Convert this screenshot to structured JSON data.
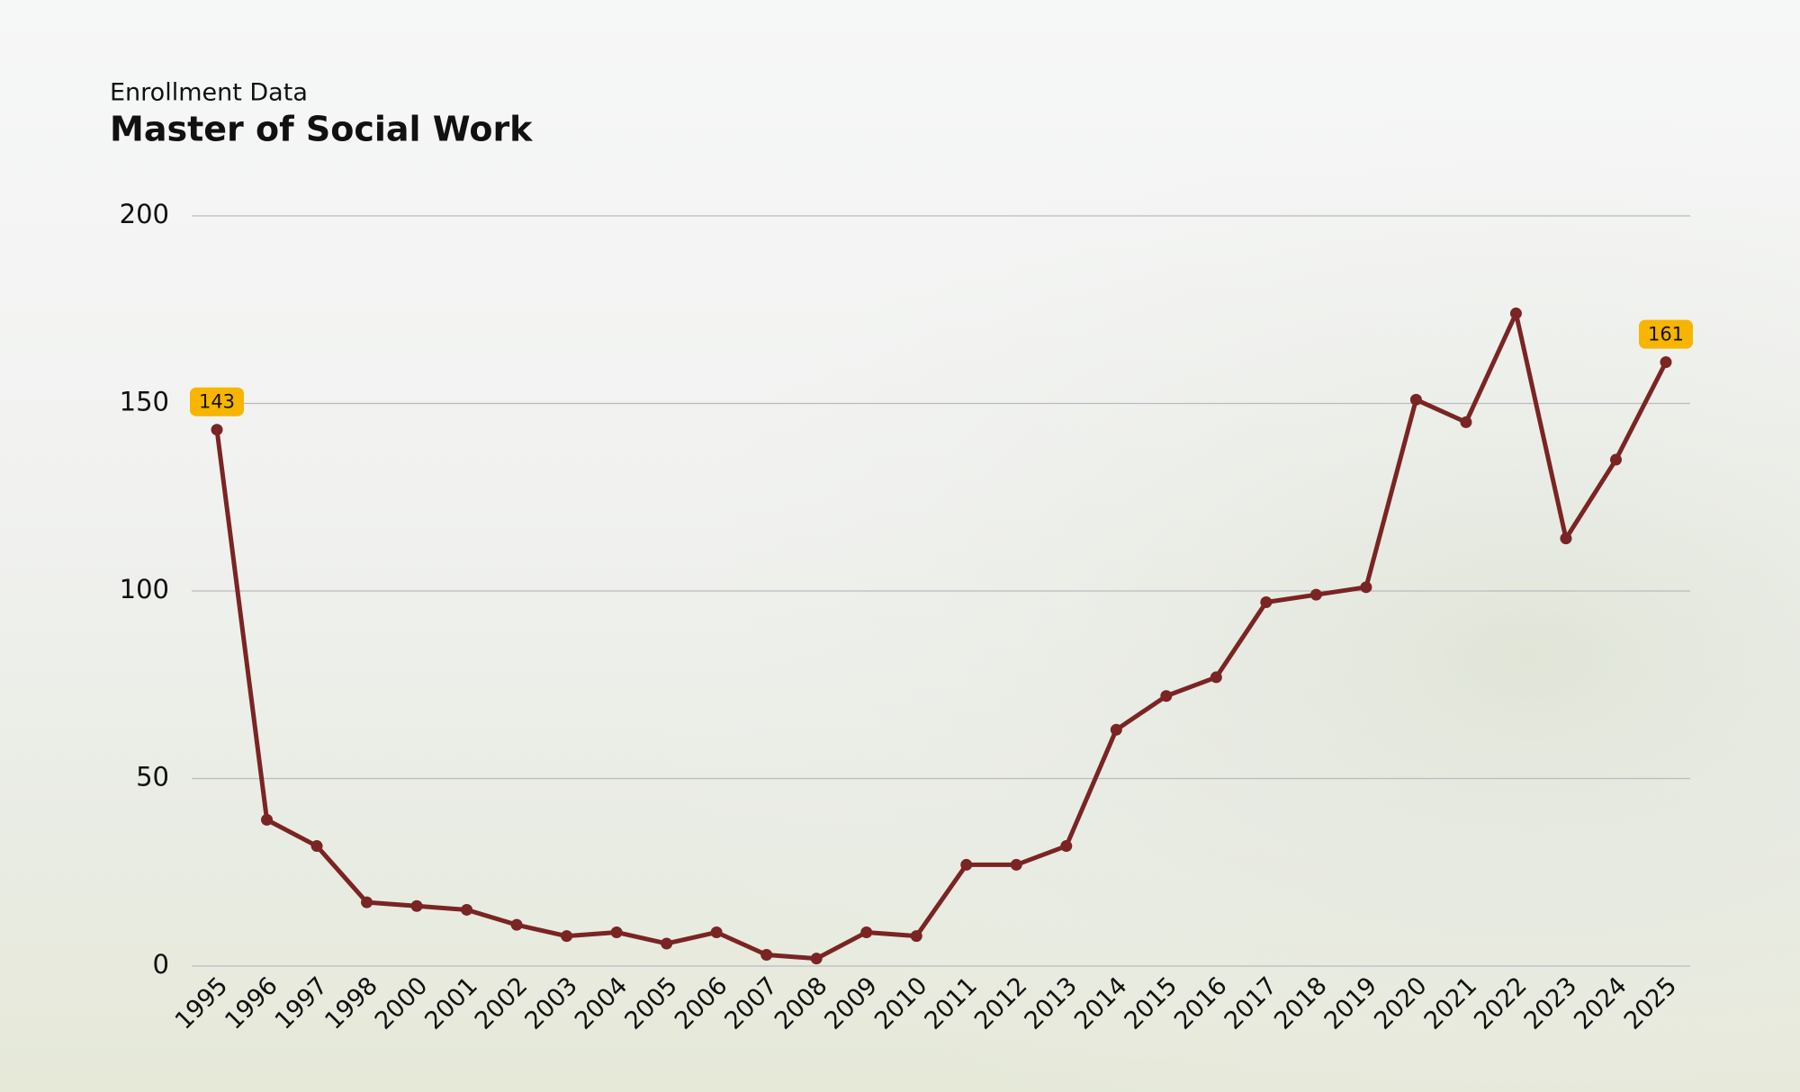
{
  "chart_data": {
    "type": "line",
    "subtitle": "Enrollment Data",
    "title": "Master of Social Work",
    "categories": [
      "1995",
      "1996",
      "1997",
      "1998",
      "2000",
      "2001",
      "2002",
      "2003",
      "2004",
      "2005",
      "2006",
      "2007",
      "2008",
      "2009",
      "2010",
      "2011",
      "2012",
      "2013",
      "2014",
      "2015",
      "2016",
      "2017",
      "2018",
      "2019",
      "2020",
      "2021",
      "2022",
      "2023",
      "2024",
      "2025"
    ],
    "series": [
      {
        "name": "Master of Social Work",
        "color": "#7a2424",
        "values": [
          143,
          39,
          32,
          17,
          16,
          15,
          11,
          8,
          9,
          6,
          9,
          3,
          2,
          9,
          8,
          27,
          27,
          32,
          63,
          72,
          77,
          97,
          99,
          101,
          151,
          145,
          174,
          114,
          135,
          161
        ]
      }
    ],
    "labeled_points": [
      0,
      29
    ],
    "label_color": "#f7b500",
    "ylim": [
      0,
      200
    ],
    "yticks": [
      0,
      50,
      100,
      150,
      200
    ],
    "grid": true
  }
}
